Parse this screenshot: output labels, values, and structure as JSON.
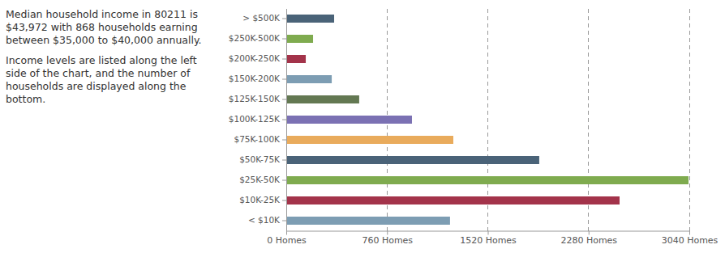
{
  "chart_data": {
    "type": "bar",
    "orientation": "horizontal",
    "annotations": [
      "Median household income in 80211 is $43,972 with 868 households earning between $35,000 to $40,000 annually.",
      "Income levels are listed along the left side of the chart, and the number of households are displayed along the bottom."
    ],
    "categories": [
      "> $500K",
      "$250K-500K",
      "$200K-250K",
      "$150K-200K",
      "$125K-150K",
      "$100K-125K",
      "$75K-100K",
      "$50K-75K",
      "$25K-50K",
      "$10K-25K",
      "< $10K"
    ],
    "values": [
      361,
      202,
      147,
      343,
      550,
      948,
      1260,
      1908,
      3034,
      2514,
      1235
    ],
    "colors": [
      "#4a6378",
      "#7fab4f",
      "#a3334a",
      "#7d9db3",
      "#637852",
      "#7b71b3",
      "#e9ab5c",
      "#4a6378",
      "#7fab4f",
      "#a3334a",
      "#7d9db3"
    ],
    "xlim": [
      0,
      3040
    ],
    "xticks": [
      {
        "value": 0,
        "label": "0 Homes"
      },
      {
        "value": 760,
        "label": "760 Homes"
      },
      {
        "value": 1520,
        "label": "1520 Homes"
      },
      {
        "value": 2280,
        "label": "2280 Homes"
      },
      {
        "value": 3040,
        "label": "3040 Homes"
      }
    ],
    "grid": true
  }
}
